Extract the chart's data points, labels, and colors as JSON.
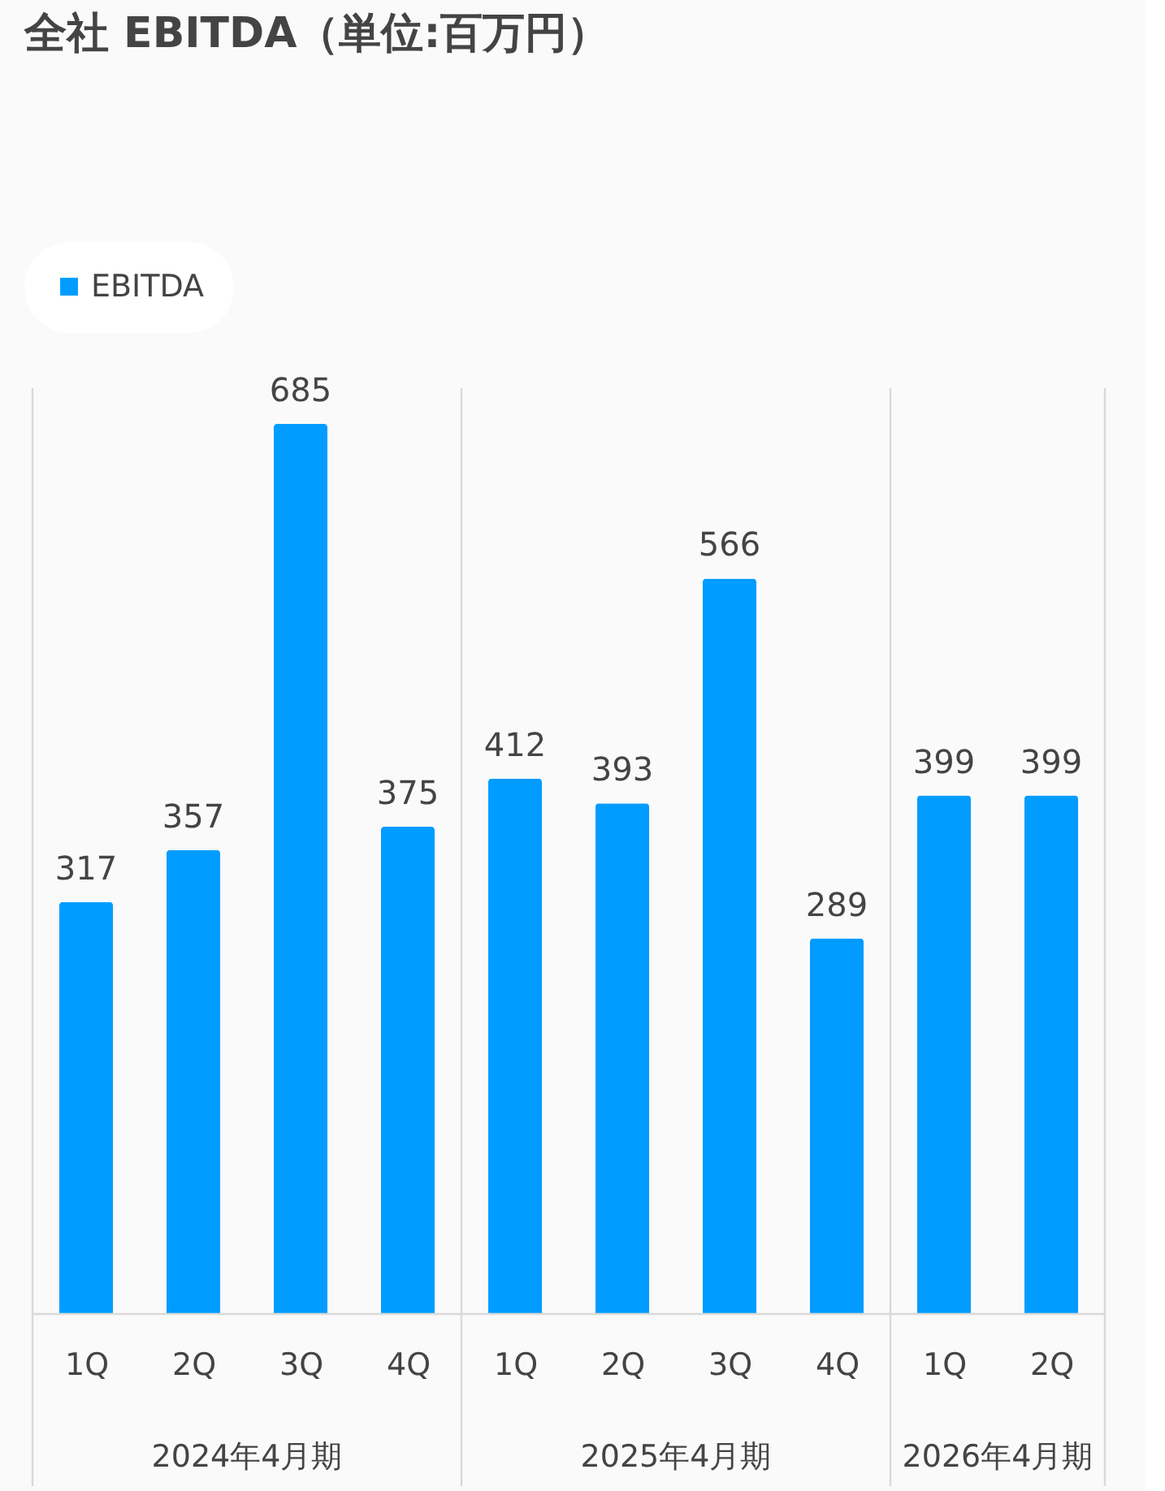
{
  "chart_data": {
    "type": "bar",
    "title": "全社 EBITDA（単位:百万円）",
    "categories": [
      "1Q",
      "2Q",
      "3Q",
      "4Q",
      "1Q",
      "2Q",
      "3Q",
      "4Q",
      "1Q",
      "2Q"
    ],
    "series": [
      {
        "name": "EBITDA",
        "color": "#009cff",
        "values": [
          317,
          357,
          685,
          375,
          412,
          393,
          566,
          289,
          399,
          399
        ]
      }
    ],
    "annotations": [
      "2024年4月期",
      "2025年4月期",
      "2026年4月期"
    ],
    "data_labels": true,
    "legend": "top left"
  }
}
